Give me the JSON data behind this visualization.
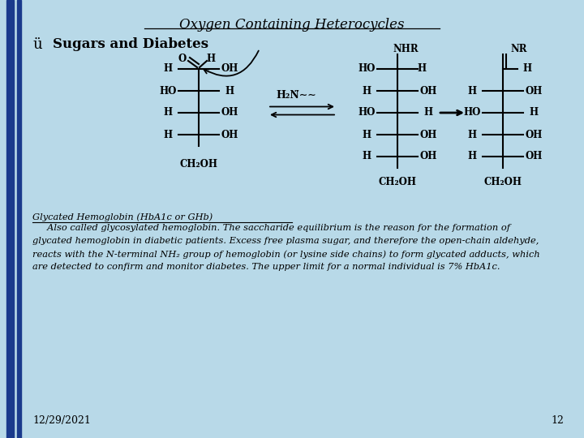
{
  "title": "Oxygen Containing Heterocycles",
  "bullet_char": "ü",
  "bullet_text": "Sugars and Diabetes",
  "background_color": "#b8d9e8",
  "left_bar_color1": "#1a3a8c",
  "left_bar_color2": "#1a3a8c",
  "title_fontsize": 12,
  "bullet_fontsize": 12,
  "body_fontsize": 8.2,
  "date_text": "12/29/2021",
  "page_num": "12",
  "glycated_title": "Glycated Hemoglobin (HbA1c or GHb)",
  "body_line1": "     Also called glycosylated hemoglobin. The saccharide equilibrium is the reason for the formation of",
  "body_line2": "glycated hemoglobin in diabetic patients. Excess free plasma sugar, and therefore the open-chain aldehyde,",
  "body_line3": "reacts with the N-terminal NH₂ group of hemoglobin (or lysine side chains) to form glycated adducts, which",
  "body_line4": "are detected to confirm and monitor diabetes. The upper limit for a normal individual is 7% HbA1c."
}
